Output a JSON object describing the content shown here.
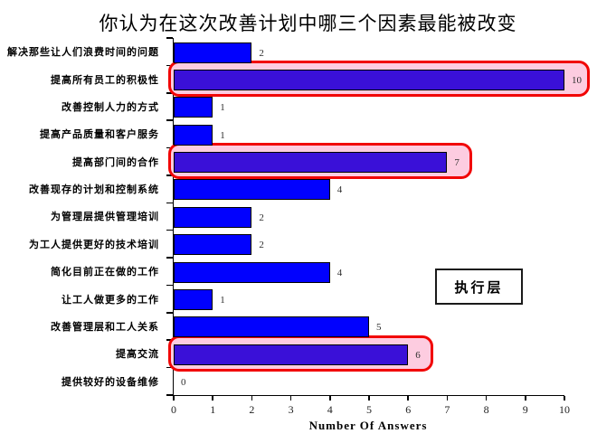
{
  "title": "你认为在这次改善计划中哪三个因素最能被改变",
  "chart_data": {
    "type": "bar",
    "orientation": "horizontal",
    "title": "你认为在这次改善计划中哪三个因素最能被改变",
    "categories": [
      "解决那些让人们浪费时间的问题",
      "提高所有员工的积极性",
      "改善控制人力的方式",
      "提高产品质量和客户服务",
      "提高部门间的合作",
      "改善现存的计划和控制系统",
      "为管理层提供管理培训",
      "为工人提供更好的技术培训",
      "简化目前正在做的工作",
      "让工人做更多的工作",
      "改善管理层和工人关系",
      "提高交流",
      "提供较好的设备维修"
    ],
    "values": [
      2,
      10,
      1,
      1,
      7,
      4,
      2,
      2,
      4,
      1,
      5,
      6,
      0
    ],
    "highlighted_indices": [
      1,
      4,
      11
    ],
    "xlabel": "Number Of Answers",
    "xlim": [
      0,
      10
    ],
    "xticks": [
      0,
      1,
      2,
      3,
      4,
      5,
      6,
      7,
      8,
      9,
      10
    ],
    "grid": false,
    "legend": "none",
    "annotation_box": "执行层",
    "colors": {
      "bar": "#0101FE",
      "highlighted_bar": "#3A10D8",
      "highlight_fill": "#FDCCE0",
      "highlight_border": "#F10505",
      "bar_border": "#000000",
      "axis": "#000000"
    }
  }
}
